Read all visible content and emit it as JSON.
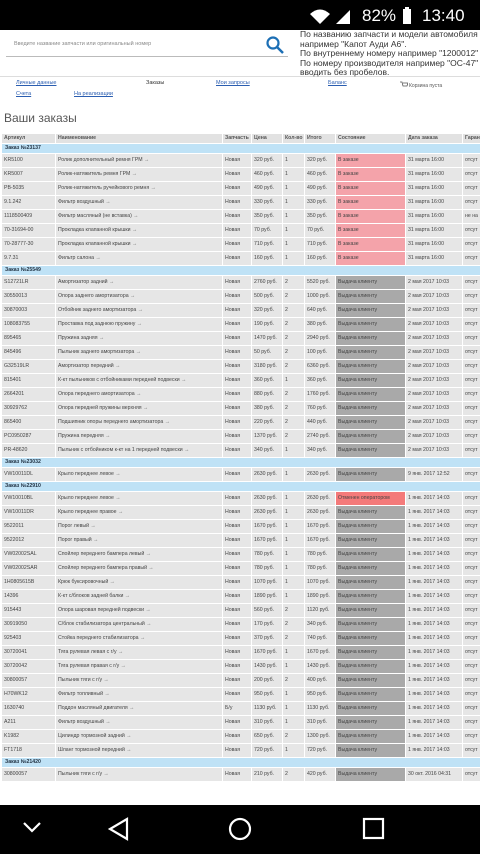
{
  "status_bar": {
    "battery": "82%",
    "time": "13:40"
  },
  "search": {
    "placeholder": "Введите название запчасти или оригинальный номер",
    "hints": [
      "По названию запчасти и модели автомобиля",
      "например \"Капот Ауди А6\".",
      "По внутреннему номеру например \"1200012\" (б/у",
      "По номеру производителя например \"ОС-47\" (ну",
      "вводить без пробелов."
    ]
  },
  "nav": {
    "row1": [
      "Личные данные",
      "Заказы",
      "Мои запросы",
      "Баланс"
    ],
    "cart": "Корзина пуста",
    "row2": [
      "Счета",
      "На реализации"
    ]
  },
  "page_title": "Ваши заказы",
  "table": {
    "columns": [
      "Артикул",
      "Наименование",
      "Запчасть",
      "Цена",
      "Кол-во",
      "Итого",
      "Состояние",
      "Дата заказа",
      "Гаран"
    ],
    "orders": [
      {
        "title": "Заказ №23137",
        "status_color": "#f4a3aa",
        "rows": [
          [
            "KR5100",
            "Ролик дополнительный ремня ГРМ",
            "Новая",
            "320 руб.",
            "1",
            "320 руб.",
            "В заказе",
            "31 марта 16:00",
            "отсут"
          ],
          [
            "KR5007",
            "Ролик-натяжитель ремня ГРМ",
            "Новая",
            "460 руб.",
            "1",
            "460 руб.",
            "В заказе",
            "31 марта 16:00",
            "отсут"
          ],
          [
            "PB-5035",
            "Ролик-натяжитель ручейкового ремня",
            "Новая",
            "490 руб.",
            "1",
            "490 руб.",
            "В заказе",
            "31 марта 16:00",
            "отсут"
          ],
          [
            "9.1.242",
            "Фильтр воздушный",
            "Новая",
            "330 руб.",
            "1",
            "330 руб.",
            "В заказе",
            "31 марта 16:00",
            "отсут"
          ],
          [
            "1118500409",
            "Фильтр масляный (не вставка)",
            "Новая",
            "350 руб.",
            "1",
            "350 руб.",
            "В заказе",
            "31 марта 16:00",
            "не на"
          ],
          [
            "70-31694-00",
            "Прокладка клапанной крышки",
            "Новая",
            "70 руб.",
            "1",
            "70 руб.",
            "В заказе",
            "31 марта 16:00",
            "отсут"
          ],
          [
            "70-28777-30",
            "Прокладка клапанной крышки",
            "Новая",
            "710 руб.",
            "1",
            "710 руб.",
            "В заказе",
            "31 марта 16:00",
            "отсут"
          ],
          [
            "9.7.31",
            "Фильтр салона",
            "Новая",
            "160 руб.",
            "1",
            "160 руб.",
            "В заказе",
            "31 марта 16:00",
            "отсут"
          ]
        ]
      },
      {
        "title": "Заказ №25549",
        "status_color": "#a9a9a9",
        "rows": [
          [
            "S12721LR",
            "Амортизатор задний",
            "Новая",
            "2760 руб.",
            "2",
            "5520 руб.",
            "Выдача клиенту",
            "2 мая 2017 10:03",
            "отсут"
          ],
          [
            "30550013",
            "Опора заднего амортизатора",
            "Новая",
            "500 руб.",
            "2",
            "1000 руб.",
            "Выдача клиенту",
            "2 мая 2017 10:03",
            "отсут"
          ],
          [
            "30870003",
            "Отбойник заднего амортизатора",
            "Новая",
            "320 руб.",
            "2",
            "640 руб.",
            "Выдача клиенту",
            "2 мая 2017 10:03",
            "отсут"
          ],
          [
            "108083755",
            "Проставка под заднюю пружину",
            "Новая",
            "190 руб.",
            "2",
            "380 руб.",
            "Выдача клиенту",
            "2 мая 2017 10:03",
            "отсут"
          ],
          [
            "895465",
            "Пружина задняя",
            "Новая",
            "1470 руб.",
            "2",
            "2940 руб.",
            "Выдача клиенту",
            "2 мая 2017 10:03",
            "отсут"
          ],
          [
            "845496",
            "Пыльник заднего амортизатора",
            "Новая",
            "50 руб.",
            "2",
            "100 руб.",
            "Выдача клиенту",
            "2 мая 2017 10:03",
            "отсут"
          ],
          [
            "G32519LR",
            "Амортизатор передний",
            "Новая",
            "3180 руб.",
            "2",
            "6360 руб.",
            "Выдача клиенту",
            "2 мая 2017 10:03",
            "отсут"
          ],
          [
            "815401",
            "К-кт пыльников с отбойниками передней подвески",
            "Новая",
            "360 руб.",
            "1",
            "360 руб.",
            "Выдача клиенту",
            "2 мая 2017 10:03",
            "отсут"
          ],
          [
            "2664201",
            "Опора переднего амортизатора",
            "Новая",
            "880 руб.",
            "2",
            "1760 руб.",
            "Выдача клиенту",
            "2 мая 2017 10:03",
            "отсут"
          ],
          [
            "30929762",
            "Опора передней пружины верхняя",
            "Новая",
            "380 руб.",
            "2",
            "760 руб.",
            "Выдача клиенту",
            "2 мая 2017 10:03",
            "отсут"
          ],
          [
            "865400",
            "Подшипник опоры переднего амортизатора",
            "Новая",
            "220 руб.",
            "2",
            "440 руб.",
            "Выдача клиенту",
            "2 мая 2017 10:03",
            "отсут"
          ],
          [
            "PC0950287",
            "Пружина передняя",
            "Новая",
            "1370 руб.",
            "2",
            "2740 руб.",
            "Выдача клиенту",
            "2 мая 2017 10:03",
            "отсут"
          ],
          [
            "PR-48620",
            "Пыльник с отбойником к-кт на 1 передней подвески",
            "Новая",
            "340 руб.",
            "1",
            "340 руб.",
            "Выдача клиенту",
            "2 мая 2017 10:03",
            "отсут"
          ]
        ]
      },
      {
        "title": "Заказ №23032",
        "status_color": "#a9a9a9",
        "rows": [
          [
            "VW10011DL",
            "Крыло переднее левое",
            "Новая",
            "2630 руб.",
            "1",
            "2630 руб.",
            "Выдача клиенту",
            "9 янв. 2017 12:52",
            "отсут"
          ]
        ]
      },
      {
        "title": "Заказ №22910",
        "status_color": "#a9a9a9",
        "rows": [
          [
            "VW10010BL",
            "Крыло переднее левое",
            "Новая",
            "2630 руб.",
            "1",
            "2630 руб.",
            {
              "text": "Отменен оператором",
              "color": "#f47a7a"
            },
            "1 янв. 2017 14:03",
            "отсут"
          ],
          [
            "VW10011DR",
            "Крыло переднее правое",
            "Новая",
            "2630 руб.",
            "1",
            "2630 руб.",
            "Выдача клиенту",
            "1 янв. 2017 14:03",
            "отсут"
          ],
          [
            "9522011",
            "Порог левый",
            "Новая",
            "1670 руб.",
            "1",
            "1670 руб.",
            "Выдача клиенту",
            "1 янв. 2017 14:03",
            "отсут"
          ],
          [
            "9522012",
            "Порог правый",
            "Новая",
            "1670 руб.",
            "1",
            "1670 руб.",
            "Выдача клиенту",
            "1 янв. 2017 14:03",
            "отсут"
          ],
          [
            "VW02002SAL",
            "Спойлер переднего бампера левый",
            "Новая",
            "780 руб.",
            "1",
            "780 руб.",
            "Выдача клиенту",
            "1 янв. 2017 14:03",
            "отсут"
          ],
          [
            "VW02002SAR",
            "Спойлер переднего бампера правый",
            "Новая",
            "780 руб.",
            "1",
            "780 руб.",
            "Выдача клиенту",
            "1 янв. 2017 14:03",
            "отсут"
          ],
          [
            "1H0805615B",
            "Крюк буксировочный",
            "Новая",
            "1070 руб.",
            "1",
            "1070 руб.",
            "Выдача клиенту",
            "1 янв. 2017 14:03",
            "отсут"
          ],
          [
            "14396",
            "К-кт с/блоков задней балки",
            "Новая",
            "1890 руб.",
            "1",
            "1890 руб.",
            "Выдача клиенту",
            "1 янв. 2017 14:03",
            "отсут"
          ],
          [
            "915443",
            "Опора шаровая передней подвески",
            "Новая",
            "560 руб.",
            "2",
            "1120 руб.",
            "Выдача клиенту",
            "1 янв. 2017 14:03",
            "отсут"
          ],
          [
            "30919050",
            "С/блок стабилизатора центральный",
            "Новая",
            "170 руб.",
            "2",
            "340 руб.",
            "Выдача клиенту",
            "1 янв. 2017 14:03",
            "отсут"
          ],
          [
            "925403",
            "Стойка переднего стабилизатора",
            "Новая",
            "370 руб.",
            "2",
            "740 руб.",
            "Выдача клиенту",
            "1 янв. 2017 14:03",
            "отсут"
          ],
          [
            "30720041",
            "Тяга рулевая левая с г/у",
            "Новая",
            "1670 руб.",
            "1",
            "1670 руб.",
            "Выдача клиенту",
            "1 янв. 2017 14:03",
            "отсут"
          ],
          [
            "30720042",
            "Тяга рулевая правая с г/у",
            "Новая",
            "1430 руб.",
            "1",
            "1430 руб.",
            "Выдача клиенту",
            "1 янв. 2017 14:03",
            "отсут"
          ],
          [
            "30800057",
            "Пыльник тяги с г/у",
            "Новая",
            "200 руб.",
            "2",
            "400 руб.",
            "Выдача клиенту",
            "1 янв. 2017 14:03",
            "отсут"
          ],
          [
            "H70WK12",
            "Фильтр топливный",
            "Новая",
            "950 руб.",
            "1",
            "950 руб.",
            "Выдача клиенту",
            "1 янв. 2017 14:03",
            "отсут"
          ],
          [
            "1630740",
            "Поддон масляный двигателя",
            "Б/у",
            "1130 руб.",
            "1",
            "1130 руб.",
            "Выдача клиенту",
            "1 янв. 2017 14:03",
            "отсут"
          ],
          [
            "A211",
            "Фильтр воздушный",
            "Новая",
            "310 руб.",
            "1",
            "310 руб.",
            "Выдача клиенту",
            "1 янв. 2017 14:03",
            "отсут"
          ],
          [
            "K1982",
            "Цилиндр тормозной задний",
            "Новая",
            "650 руб.",
            "2",
            "1300 руб.",
            "Выдача клиенту",
            "1 янв. 2017 14:03",
            "отсут"
          ],
          [
            "FT1718",
            "Шланг тормозной передний",
            "Новая",
            "720 руб.",
            "1",
            "720 руб.",
            "Выдача клиенту",
            "1 янв. 2017 14:03",
            "отсут"
          ]
        ]
      },
      {
        "title": "Заказ №21420",
        "status_color": "#a9a9a9",
        "rows": [
          [
            "30800057",
            "Пыльник тяги с г/у",
            "Новая",
            "210 руб.",
            "2",
            "420 руб.",
            "Выдача клиенту",
            "30 окт. 2016 04:31",
            "отсут"
          ]
        ]
      }
    ]
  }
}
